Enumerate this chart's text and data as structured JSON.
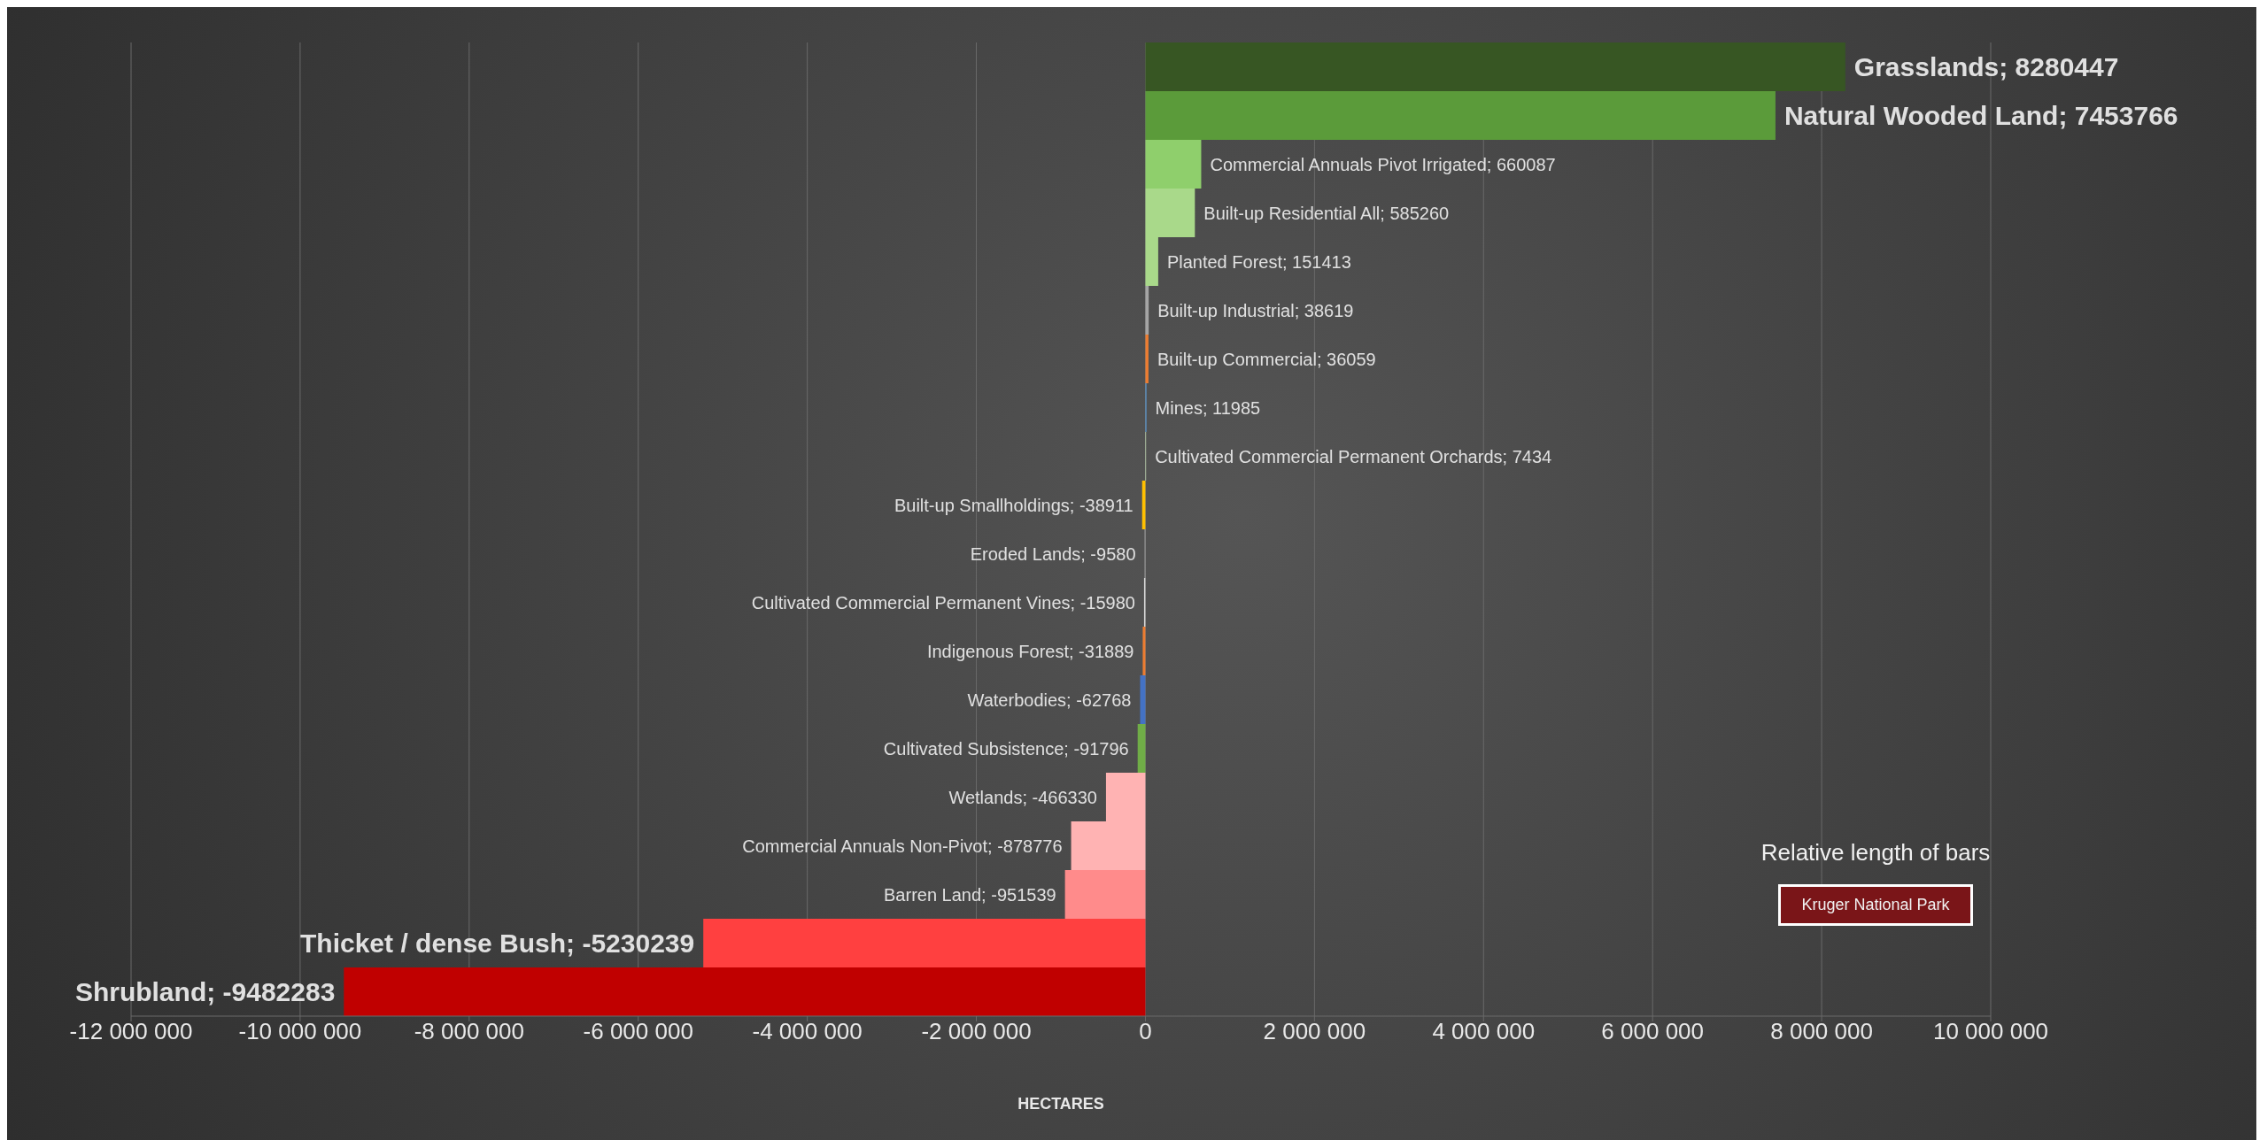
{
  "chart_data": {
    "type": "bar",
    "orientation": "horizontal",
    "xlabel": "HECTARES",
    "categories": [
      null,
      null,
      null,
      null,
      null,
      null,
      null,
      null,
      null,
      null,
      null,
      null,
      null,
      null,
      null,
      null,
      null,
      null,
      null,
      null
    ],
    "values": [
      8280447,
      7453766,
      660087,
      585260,
      151413,
      38619,
      36059,
      11985,
      7434,
      -38911,
      -9580,
      -15980,
      -31889,
      -62768,
      -91796,
      -466330,
      -878776,
      -951539,
      -5230239,
      -9482283
    ],
    "colors": [
      "#375623",
      "#5b9b3a",
      "#8fcf6c",
      "#a9d98a",
      "#a9d98a",
      "#a5a5a5",
      "#ed7d31",
      "#5b9bd5",
      "#c9e2b8",
      "#ffc000",
      "#a5a5a5",
      "#d9d9d9",
      "#ed7d31",
      "#4472c4",
      "#70ad47",
      "#ffb3b3",
      "#ffb3b3",
      "#ff8b8b",
      "#ff4040",
      "#c00000"
    ],
    "value_labels": [
      "Grasslands; 8280447",
      "Natural Wooded Land; 7453766",
      "Commercial Annuals Pivot Irrigated; 660087",
      "Built-up Residential All; 585260",
      "Planted Forest; 151413",
      "Built-up Industrial; 38619",
      "Built-up Commercial; 36059",
      "Mines; 11985",
      "Cultivated Commercial Permanent Orchards; 7434",
      "Built-up Smallholdings; -38911",
      "Eroded Lands; -9580",
      "Cultivated Commercial Permanent Vines; -15980",
      "Indigenous Forest; -31889",
      "Waterbodies; -62768",
      "Cultivated Subsistence; -91796",
      "Wetlands; -466330",
      "Commercial Annuals Non-Pivot; -878776",
      "Barren Land; -951539",
      "Thicket / dense Bush; -5230239",
      "Shrubland; -9482283"
    ],
    "xlim": [
      -12000000,
      10000000
    ],
    "xticks": [
      -12000000,
      -10000000,
      -8000000,
      -6000000,
      -4000000,
      -2000000,
      0,
      2000000,
      4000000,
      6000000,
      8000000,
      10000000
    ],
    "grid": "x",
    "annotations": [
      "Relative length of bars",
      "Kruger National Park"
    ]
  }
}
